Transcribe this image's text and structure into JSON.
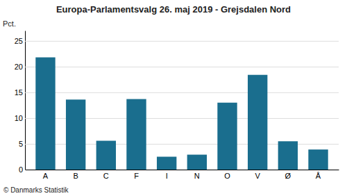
{
  "chart_data": {
    "type": "bar",
    "title": "Europa-Parlamentsvalg 26. maj 2019 - Grejsdalen Nord",
    "categories": [
      "A",
      "B",
      "C",
      "F",
      "I",
      "N",
      "O",
      "V",
      "Ø",
      "Å"
    ],
    "values": [
      21.8,
      13.6,
      5.6,
      13.7,
      2.5,
      2.9,
      13.0,
      18.4,
      5.5,
      3.9
    ],
    "color": "#1a6e8e",
    "ylabel": "Pct.",
    "ylim": [
      0,
      27
    ],
    "yticks": [
      0,
      5,
      10,
      15,
      20,
      25
    ],
    "grid": true,
    "source": "© Danmarks Statistik"
  }
}
